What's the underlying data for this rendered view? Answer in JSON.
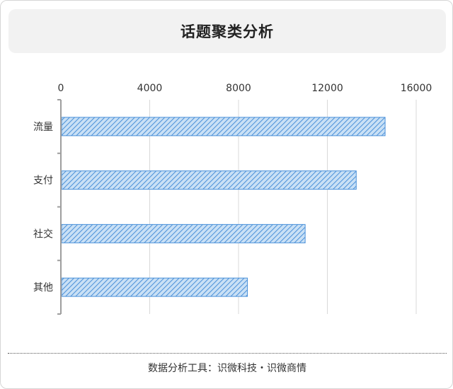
{
  "chart_data": {
    "type": "bar",
    "orientation": "horizontal",
    "title": "话题聚类分析",
    "categories": [
      "流量",
      "支付",
      "社交",
      "其他"
    ],
    "values": [
      14600,
      13300,
      11000,
      8400
    ],
    "xlim": [
      0,
      16000
    ],
    "xticks": [
      0,
      4000,
      8000,
      12000,
      16000
    ],
    "x_axis_position": "top",
    "grid": true,
    "bar_color": "#4a90d9",
    "bar_fill": "#c9e0f5",
    "bar_pattern": "diagonal-hatch"
  },
  "footer": {
    "text": "数据分析工具：识微科技・识微商情"
  }
}
